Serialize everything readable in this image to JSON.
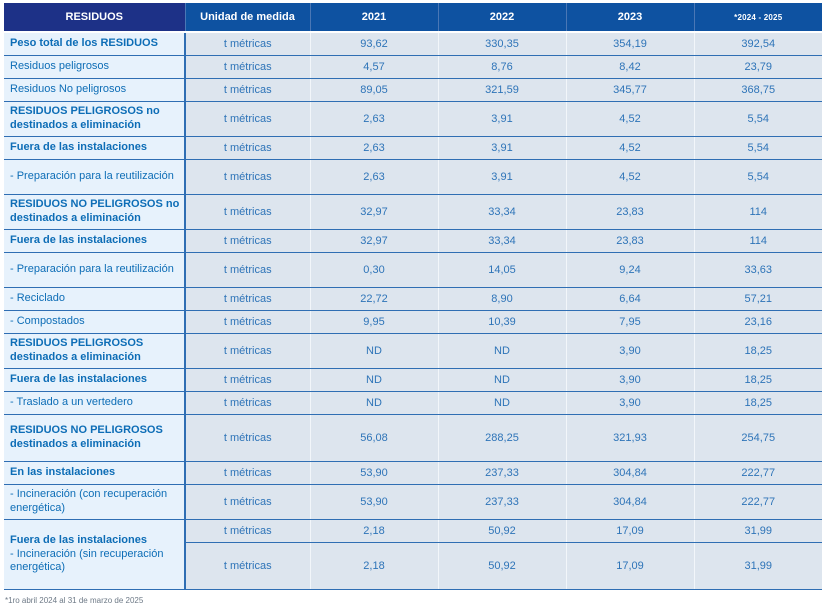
{
  "table": {
    "columns": {
      "residuos": "RESIDUOS",
      "unidad": "Unidad de medida",
      "y2021": "2021",
      "y2022": "2022",
      "y2023": "2023",
      "y2024_25": "*2024 - 2025"
    },
    "rows": [
      {
        "label": "Peso total de los RESIDUOS",
        "bold": true,
        "unit": "t métricas",
        "values": [
          "93,62",
          "330,35",
          "354,19",
          "392,54"
        ]
      },
      {
        "label": "Residuos peligrosos",
        "bold": false,
        "unit": "t métricas",
        "values": [
          "4,57",
          "8,76",
          "8,42",
          "23,79"
        ]
      },
      {
        "label": "Residuos No peligrosos",
        "bold": false,
        "unit": "t métricas",
        "values": [
          "89,05",
          "321,59",
          "345,77",
          "368,75"
        ]
      },
      {
        "label": "RESIDUOS PELIGROSOS no destinados a eliminación",
        "bold": true,
        "unit": "t métricas",
        "values": [
          "2,63",
          "3,91",
          "4,52",
          "5,54"
        ]
      },
      {
        "label": "Fuera de las instalaciones",
        "bold": true,
        "unit": "t métricas",
        "values": [
          "2,63",
          "3,91",
          "4,52",
          "5,54"
        ]
      },
      {
        "label": "- Preparación para la reutilización",
        "bold": false,
        "unit": "t métricas",
        "values": [
          "2,63",
          "3,91",
          "4,52",
          "5,54"
        ]
      },
      {
        "label": "RESIDUOS NO PELIGROSOS no destinados a eliminación",
        "bold": true,
        "unit": "t métricas",
        "values": [
          "32,97",
          "33,34",
          "23,83",
          "114"
        ]
      },
      {
        "label": "Fuera de las instalaciones",
        "bold": true,
        "unit": "t métricas",
        "values": [
          "32,97",
          "33,34",
          "23,83",
          "114"
        ]
      },
      {
        "label": "- Preparación para la reutilización",
        "bold": false,
        "unit": "t métricas",
        "values": [
          "0,30",
          "14,05",
          "9,24",
          "33,63"
        ]
      },
      {
        "label": "- Reciclado",
        "bold": false,
        "unit": "t métricas",
        "values": [
          "22,72",
          "8,90",
          "6,64",
          "57,21"
        ]
      },
      {
        "label": "- Compostados",
        "bold": false,
        "unit": "t métricas",
        "values": [
          "9,95",
          "10,39",
          "7,95",
          "23,16"
        ]
      },
      {
        "label": "RESIDUOS PELIGROSOS destinados a eliminación",
        "bold": true,
        "unit": "t métricas",
        "values": [
          "ND",
          "ND",
          "3,90",
          "18,25"
        ]
      },
      {
        "label": "Fuera de las instalaciones",
        "bold": true,
        "unit": "t métricas",
        "values": [
          "ND",
          "ND",
          "3,90",
          "18,25"
        ]
      },
      {
        "label": "- Traslado a un vertedero",
        "bold": false,
        "unit": "t métricas",
        "values": [
          "ND",
          "ND",
          "3,90",
          "18,25"
        ]
      },
      {
        "label": "RESIDUOS NO PELIGROSOS destinados a eliminación",
        "bold": true,
        "unit": "t métricas",
        "values": [
          "56,08",
          "288,25",
          "321,93",
          "254,75"
        ]
      },
      {
        "label": "En las instalaciones",
        "bold": true,
        "unit": "t métricas",
        "values": [
          "53,90",
          "237,33",
          "304,84",
          "222,77"
        ]
      },
      {
        "label": "- Incineración (con recuperación energética)",
        "bold": false,
        "unit": "t métricas",
        "values": [
          "53,90",
          "237,33",
          "304,84",
          "222,77"
        ]
      }
    ],
    "group": {
      "label_bold": "Fuera de las instalaciones",
      "label_regular": "- Incineración (sin recuperación energética)",
      "rows": [
        {
          "unit": "t métricas",
          "values": [
            "2,18",
            "50,92",
            "17,09",
            "31,99"
          ]
        },
        {
          "unit": "t métricas",
          "values": [
            "2,18",
            "50,92",
            "17,09",
            "31,99"
          ]
        }
      ]
    }
  },
  "footnote": "*1ro abril 2024 al 31 de marzo de 2025",
  "colors": {
    "header_navy": "#1d3187",
    "header_blue": "#0e52a1",
    "label_cell_bg": "#e7f2fc",
    "data_cell_bg": "#dde5ee",
    "row_border_blue": "#2f6eb3",
    "label_text_blue": "#0d6db6",
    "value_text_blue": "#2e74b8",
    "footnote_gray": "#6e7a87"
  }
}
